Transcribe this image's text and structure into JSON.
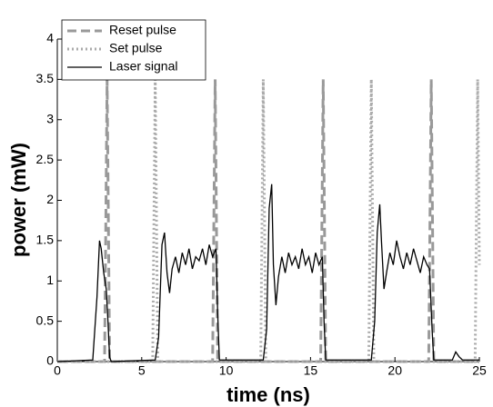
{
  "chart_data": {
    "type": "line",
    "xlabel": "time (ns)",
    "ylabel": "power (mW)",
    "xlim": [
      0,
      25
    ],
    "xticks": [
      0,
      5,
      10,
      15,
      20,
      25
    ],
    "ylim": [
      0,
      4
    ],
    "yticks": [
      0,
      0.5,
      1,
      1.5,
      2,
      2.5,
      3,
      3.5,
      4
    ],
    "legend": "upper left",
    "series": [
      {
        "name": "Reset pulse",
        "color": "#999999",
        "dash": "dashed",
        "x": [
          0,
          2.8,
          2.95,
          3.1,
          9.2,
          9.35,
          9.5,
          15.6,
          15.75,
          15.9,
          22.0,
          22.15,
          22.3,
          25
        ],
        "values": [
          0,
          0,
          3.5,
          0,
          0,
          3.5,
          0,
          0,
          3.5,
          0,
          0,
          3.5,
          0,
          0
        ]
      },
      {
        "name": "Set pulse",
        "color": "#aaaaaa",
        "dash": "dotted",
        "x": [
          0,
          5.65,
          5.8,
          5.95,
          12.05,
          12.2,
          12.35,
          18.45,
          18.6,
          18.75,
          24.75,
          24.9,
          25
        ],
        "values": [
          0,
          0,
          3.5,
          0,
          0,
          3.5,
          0,
          0,
          3.5,
          0,
          0,
          3.5,
          1.2
        ]
      },
      {
        "name": "Laser signal",
        "color": "#000000",
        "dash": "solid",
        "x": [
          0,
          2.1,
          2.35,
          2.5,
          2.6,
          2.75,
          2.9,
          3.0,
          3.1,
          3.2,
          5.8,
          6.0,
          6.2,
          6.35,
          6.5,
          6.65,
          6.8,
          7.0,
          7.2,
          7.4,
          7.6,
          7.8,
          8.0,
          8.2,
          8.4,
          8.6,
          8.8,
          9.0,
          9.2,
          9.4,
          9.5,
          9.6,
          12.2,
          12.4,
          12.55,
          12.7,
          12.8,
          12.95,
          13.1,
          13.3,
          13.5,
          13.7,
          13.9,
          14.1,
          14.3,
          14.5,
          14.7,
          14.9,
          15.1,
          15.3,
          15.5,
          15.7,
          15.8,
          15.9,
          18.6,
          18.8,
          18.95,
          19.1,
          19.2,
          19.35,
          19.5,
          19.7,
          19.9,
          20.1,
          20.3,
          20.5,
          20.7,
          20.9,
          21.1,
          21.3,
          21.5,
          21.7,
          21.9,
          22.05,
          22.2,
          22.3,
          23.4,
          23.6,
          23.8,
          24.0,
          25
        ],
        "values": [
          0,
          0.02,
          0.8,
          1.5,
          1.4,
          1.1,
          0.9,
          0.5,
          0.05,
          0,
          0.02,
          0.3,
          1.45,
          1.6,
          1.1,
          0.85,
          1.15,
          1.3,
          1.1,
          1.35,
          1.2,
          1.4,
          1.15,
          1.3,
          1.25,
          1.4,
          1.2,
          1.45,
          1.3,
          1.4,
          0.6,
          0.02,
          0.02,
          0.4,
          1.9,
          2.2,
          1.2,
          0.7,
          1.05,
          1.3,
          1.1,
          1.35,
          1.2,
          1.3,
          1.15,
          1.4,
          1.2,
          1.3,
          1.1,
          1.35,
          1.2,
          1.3,
          0.5,
          0.02,
          0.02,
          0.5,
          1.6,
          1.95,
          1.5,
          0.9,
          1.1,
          1.35,
          1.2,
          1.5,
          1.3,
          1.15,
          1.35,
          1.2,
          1.4,
          1.25,
          1.1,
          1.3,
          1.2,
          1.15,
          0.4,
          0.02,
          0.02,
          0.12,
          0.06,
          0.02,
          0.02
        ]
      }
    ]
  }
}
